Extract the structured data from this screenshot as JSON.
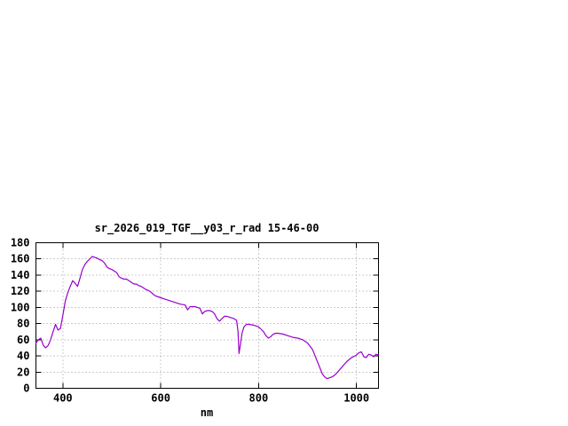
{
  "chart_data": {
    "type": "line",
    "title": "sr_2026_019_TGF__y03_r_rad 15-46-00",
    "xlabel": "nm",
    "ylabel": "",
    "xlim": [
      345,
      1045
    ],
    "ylim": [
      0,
      180
    ],
    "x_ticks": [
      400,
      600,
      800,
      1000
    ],
    "y_ticks": [
      0,
      20,
      40,
      60,
      80,
      100,
      120,
      140,
      160,
      180
    ],
    "grid": true,
    "legend": "none",
    "line_color": "#9900cc",
    "background_color": "#ffffff",
    "series": [
      {
        "x": [
          345,
          350,
          355,
          360,
          365,
          370,
          375,
          380,
          385,
          390,
          395,
          400,
          405,
          410,
          415,
          420,
          425,
          430,
          435,
          440,
          445,
          450,
          455,
          460,
          465,
          470,
          475,
          480,
          485,
          490,
          495,
          500,
          505,
          510,
          515,
          520,
          525,
          530,
          535,
          540,
          545,
          550,
          555,
          560,
          565,
          570,
          575,
          580,
          585,
          590,
          595,
          600,
          610,
          620,
          630,
          640,
          650,
          655,
          660,
          665,
          670,
          675,
          680,
          685,
          690,
          695,
          700,
          705,
          710,
          715,
          720,
          725,
          730,
          735,
          740,
          745,
          750,
          755,
          758,
          760,
          763,
          766,
          770,
          775,
          780,
          790,
          800,
          805,
          810,
          815,
          820,
          825,
          830,
          835,
          840,
          850,
          860,
          870,
          880,
          890,
          900,
          910,
          920,
          930,
          935,
          940,
          945,
          950,
          955,
          960,
          970,
          980,
          990,
          1000,
          1005,
          1010,
          1015,
          1020,
          1025,
          1030,
          1035,
          1040,
          1045
        ],
        "y": [
          56,
          60,
          62,
          53,
          50,
          53,
          60,
          70,
          79,
          72,
          74,
          90,
          108,
          118,
          126,
          133,
          130,
          126,
          136,
          147,
          153,
          157,
          160,
          163,
          162,
          161,
          159,
          158,
          155,
          150,
          148,
          147,
          145,
          143,
          138,
          136,
          135,
          135,
          133,
          131,
          129,
          129,
          127,
          126,
          124,
          122,
          121,
          119,
          116,
          114,
          113,
          112,
          110,
          108,
          106,
          104,
          103,
          97,
          101,
          101,
          101,
          100,
          99,
          92,
          95,
          96,
          96,
          95,
          92,
          86,
          83,
          86,
          89,
          89,
          88,
          87,
          86,
          84,
          70,
          43,
          55,
          68,
          76,
          79,
          79,
          78,
          76,
          73,
          70,
          65,
          62,
          64,
          67,
          68,
          68,
          67,
          65,
          63,
          62,
          60,
          56,
          48,
          33,
          18,
          14,
          12,
          13,
          14,
          16,
          19,
          26,
          33,
          38,
          41,
          44,
          45,
          39,
          38,
          42,
          41,
          39,
          42,
          41
        ]
      }
    ]
  }
}
